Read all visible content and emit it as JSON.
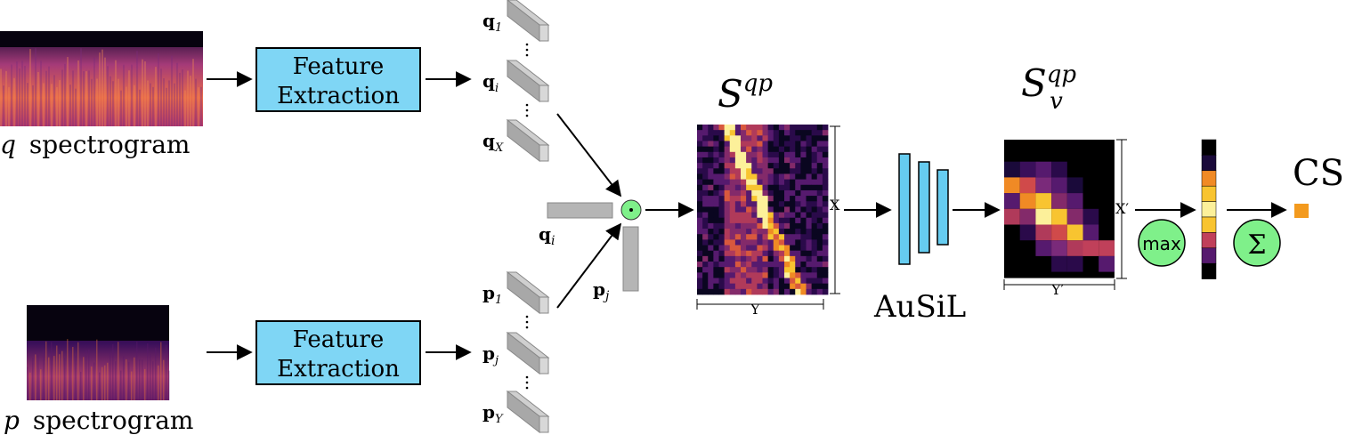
{
  "colors": {
    "box_fill": "#7fd6f5",
    "green_circle": "#7ff08a",
    "vector_gray": "#b5b5b5",
    "arrow": "#000000",
    "output_square": "#f39a1e",
    "ausil_layer": "#66ccf0"
  },
  "spectrograms": {
    "q_label_var": "q",
    "q_label_text": "spectrogram",
    "p_label_var": "p",
    "p_label_text": "spectrogram"
  },
  "feature_extraction": {
    "line1": "Feature",
    "line2": "Extraction"
  },
  "q_vectors": {
    "base": "q",
    "subs": [
      "1",
      "i",
      "X"
    ]
  },
  "p_vectors": {
    "base": "p",
    "subs": [
      "1",
      "j",
      "Y"
    ]
  },
  "dot_product": {
    "qi_base": "q",
    "qi_sub": "i",
    "pj_base": "p",
    "pj_sub": "j",
    "operator": "·"
  },
  "similarity_matrix": {
    "symbol": "S",
    "superscript": "qp",
    "dim_x": "X",
    "dim_y": "Y"
  },
  "ausil": {
    "label": "AuSiL"
  },
  "video_similarity": {
    "symbol": "S",
    "superscript": "qp",
    "subscript": "v",
    "dim_x": "X′",
    "dim_y": "Y′"
  },
  "ops": {
    "max": "max",
    "sum": "Σ"
  },
  "output": {
    "label": "CS"
  }
}
